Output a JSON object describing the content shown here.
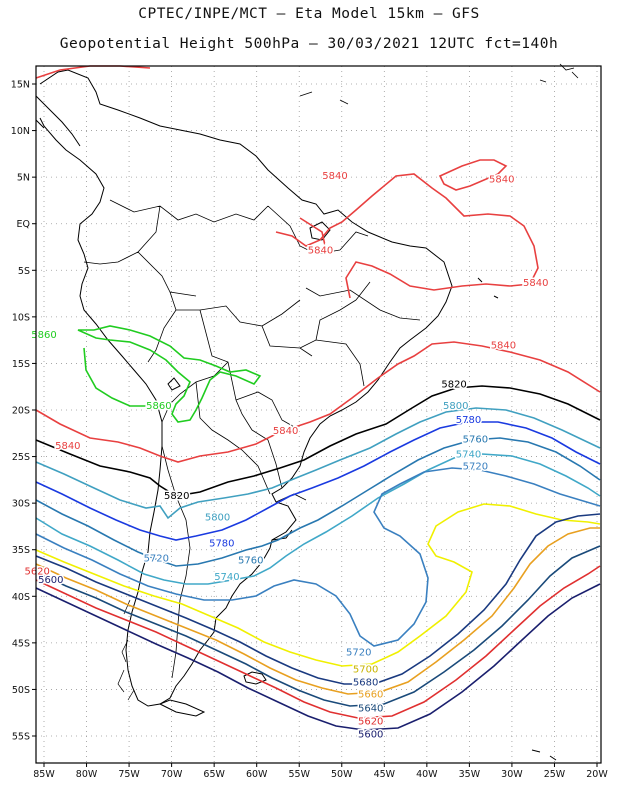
{
  "header": {
    "line1": "CPTEC/INPE/MCT –  Eta Model 15km – GFS",
    "line2": "Geopotential Height 500hPa – 30/03/2021 12UTC fct=140h"
  },
  "axes": {
    "lat_ticks": [
      "15N",
      "10N",
      "5N",
      "EQ",
      "5S",
      "10S",
      "15S",
      "20S",
      "25S",
      "30S",
      "35S",
      "40S",
      "45S",
      "50S",
      "55S"
    ],
    "lon_ticks": [
      "85W",
      "80W",
      "75W",
      "70W",
      "65W",
      "60W",
      "55W",
      "50W",
      "45W",
      "40W",
      "35W",
      "30W",
      "25W",
      "20W"
    ],
    "lat_range": [
      -58,
      16
    ],
    "lon_range": [
      -86,
      -20
    ],
    "grid": "dotted"
  },
  "colors": {
    "5600": "#1a1f6e",
    "5620": "#e03030",
    "5640": "#1a4a7a",
    "5660": "#e8a020",
    "5680": "#1a3a80",
    "5700": "#f0f000",
    "5720": "#3a80c0",
    "5740": "#40a8c8",
    "5760": "#2878b0",
    "5780": "#1a3ae0",
    "5800": "#40a0c0",
    "5820": "#000000",
    "5840": "#e84040",
    "5860": "#20cc20",
    "coast": "#000000"
  },
  "contour_labels": [
    {
      "text": "5840",
      "color": "#e84040",
      "lat": 5.2,
      "lon": -50.8
    },
    {
      "text": "5840",
      "color": "#e84040",
      "lat": 4.8,
      "lon": -31.2
    },
    {
      "text": "5840",
      "color": "#e84040",
      "lat": -2.8,
      "lon": -52.5
    },
    {
      "text": "5840",
      "color": "#e84040",
      "lat": -6.3,
      "lon": -27.2
    },
    {
      "text": "5840",
      "color": "#e84040",
      "lat": -13.0,
      "lon": -31.0
    },
    {
      "text": "5840",
      "color": "#e84040",
      "lat": -22.2,
      "lon": -56.6
    },
    {
      "text": "5840",
      "color": "#e84040",
      "lat": -23.8,
      "lon": -82.2
    },
    {
      "text": "5860",
      "color": "#20cc20",
      "lat": -11.9,
      "lon": -85.0
    },
    {
      "text": "5860",
      "color": "#20cc20",
      "lat": -19.5,
      "lon": -71.5
    },
    {
      "text": "5820",
      "color": "#000000",
      "lat": -17.2,
      "lon": -36.8
    },
    {
      "text": "5820",
      "color": "#000000",
      "lat": -29.2,
      "lon": -69.4
    },
    {
      "text": "5800",
      "color": "#40a0c0",
      "lat": -19.5,
      "lon": -36.6
    },
    {
      "text": "5800",
      "color": "#40a0c0",
      "lat": -31.5,
      "lon": -64.6
    },
    {
      "text": "5780",
      "color": "#1a3ae0",
      "lat": -21.0,
      "lon": -35.1
    },
    {
      "text": "5780",
      "color": "#1a3ae0",
      "lat": -34.3,
      "lon": -64.1
    },
    {
      "text": "5760",
      "color": "#2878b0",
      "lat": -23.1,
      "lon": -34.3
    },
    {
      "text": "5760",
      "color": "#2878b0",
      "lat": -36.1,
      "lon": -60.7
    },
    {
      "text": "5740",
      "color": "#40a8c8",
      "lat": -24.7,
      "lon": -35.1
    },
    {
      "text": "5740",
      "color": "#40a8c8",
      "lat": -37.9,
      "lon": -63.5
    },
    {
      "text": "5720",
      "color": "#3a80c0",
      "lat": -26.0,
      "lon": -34.3
    },
    {
      "text": "5720",
      "color": "#3a80c0",
      "lat": -35.9,
      "lon": -71.8
    },
    {
      "text": "5720",
      "color": "#3a80c0",
      "lat": -46.0,
      "lon": -48.0
    },
    {
      "text": "5700",
      "color": "#c8b400",
      "lat": -47.8,
      "lon": -47.2
    },
    {
      "text": "5680",
      "color": "#1a3a80",
      "lat": -49.2,
      "lon": -47.2
    },
    {
      "text": "5660",
      "color": "#e8a020",
      "lat": -50.5,
      "lon": -46.6
    },
    {
      "text": "5640",
      "color": "#1a4a7a",
      "lat": -52.0,
      "lon": -46.6
    },
    {
      "text": "5620",
      "color": "#e03030",
      "lat": -53.4,
      "lon": -46.6
    },
    {
      "text": "5600",
      "color": "#1a1f6e",
      "lat": -54.8,
      "lon": -46.6
    },
    {
      "text": "5620",
      "color": "#e03030",
      "lat": -37.3,
      "lon": -85.8
    },
    {
      "text": "5600",
      "color": "#1a1f6e",
      "lat": -38.2,
      "lon": -84.2
    }
  ]
}
